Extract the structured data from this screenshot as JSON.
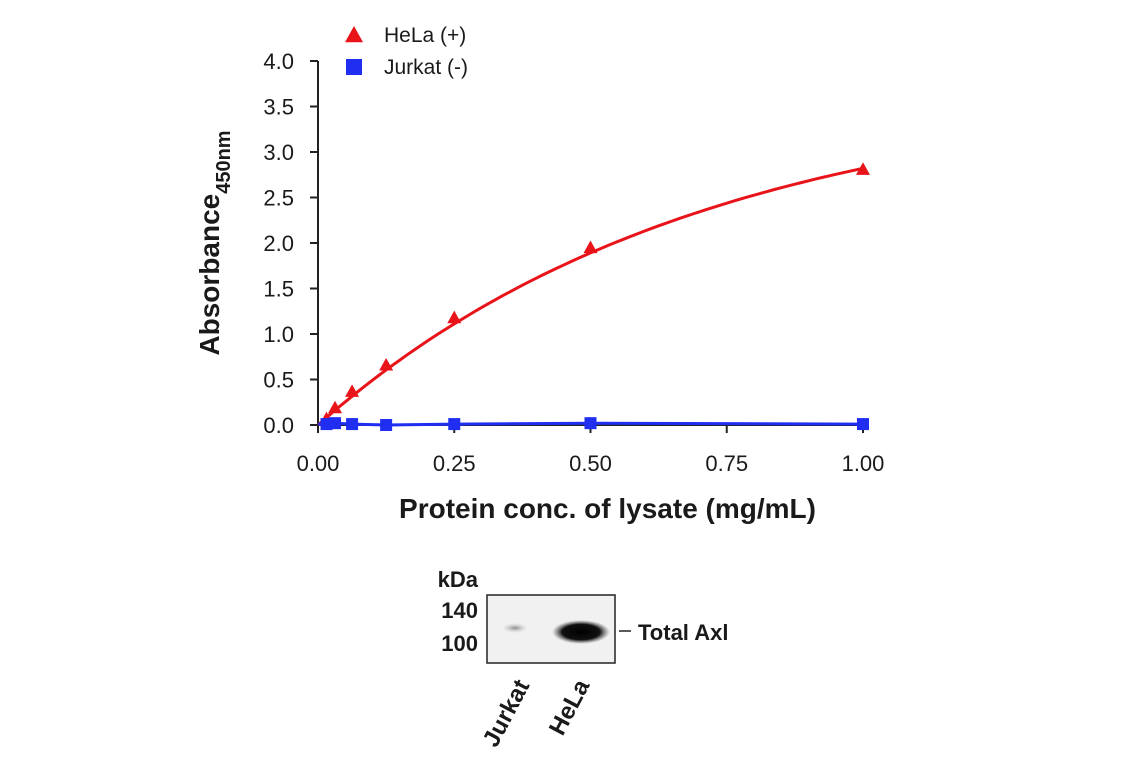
{
  "chart_data": {
    "type": "scatter",
    "xlabel": "Protein conc. of lysate (mg/mL)",
    "ylabel": "Absorbance",
    "ylabel_subscript": "450nm",
    "xlim": [
      0,
      1.0
    ],
    "ylim": [
      0,
      4.0
    ],
    "x_ticks": [
      "0.00",
      "0.25",
      "0.50",
      "0.75",
      "1.00"
    ],
    "y_ticks": [
      "0.0",
      "0.5",
      "1.0",
      "1.5",
      "2.0",
      "2.5",
      "3.0",
      "3.5",
      "4.0"
    ],
    "grid": false,
    "legend_position": "top-left",
    "series": [
      {
        "name": "HeLa (+)",
        "marker": "triangle",
        "color": "#e8141a",
        "x": [
          0.0156,
          0.03125,
          0.0625,
          0.125,
          0.25,
          0.5,
          1.0
        ],
        "y": [
          0.07,
          0.19,
          0.37,
          0.66,
          1.18,
          1.95,
          2.81
        ]
      },
      {
        "name": "Jurkat (-)",
        "marker": "square",
        "color": "#1f2ef0",
        "x": [
          0.0156,
          0.03125,
          0.0625,
          0.125,
          0.25,
          0.5,
          1.0
        ],
        "y": [
          0.01,
          0.02,
          0.01,
          0.0,
          0.01,
          0.02,
          0.01
        ]
      }
    ]
  },
  "western_blot": {
    "unit_label": "kDa",
    "markers": [
      "140",
      "100"
    ],
    "band_label": "Total Axl",
    "lanes": [
      "Jurkat",
      "HeLa"
    ]
  }
}
